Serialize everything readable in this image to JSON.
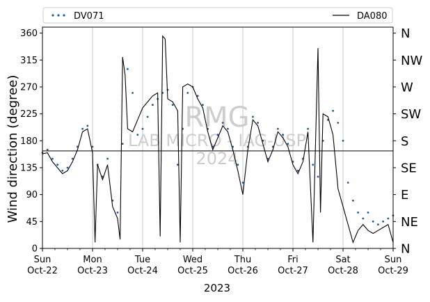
{
  "chart_data": {
    "type": "line",
    "title": "",
    "xlabel": "2023",
    "ylabel": "Wind direction (degree)",
    "ylim": [
      0,
      370
    ],
    "xlim": [
      0,
      7
    ],
    "grid": "vertical at day boundaries",
    "legend_placement": "top",
    "yticks": [
      0,
      45,
      90,
      135,
      180,
      225,
      270,
      315,
      360
    ],
    "right_axis_labels": [
      {
        "value": 0,
        "label": "N"
      },
      {
        "value": 45,
        "label": "NE"
      },
      {
        "value": 90,
        "label": "E"
      },
      {
        "value": 135,
        "label": "SE"
      },
      {
        "value": 180,
        "label": "S"
      },
      {
        "value": 225,
        "label": "SW"
      },
      {
        "value": 270,
        "label": "W"
      },
      {
        "value": 315,
        "label": "NW"
      },
      {
        "value": 360,
        "label": "N"
      }
    ],
    "xticks": [
      {
        "day": "Sun",
        "date": "Oct-22"
      },
      {
        "day": "Mon",
        "date": "Oct-23"
      },
      {
        "day": "Tue",
        "date": "Oct-24"
      },
      {
        "day": "Wed",
        "date": "Oct-25"
      },
      {
        "day": "Thu",
        "date": "Oct-26"
      },
      {
        "day": "Fri",
        "date": "Oct-27"
      },
      {
        "day": "Sat",
        "date": "Oct-28"
      },
      {
        "day": "Sun",
        "date": "Oct-29"
      }
    ],
    "hline": 163,
    "watermark": [
      "RMG",
      "LAB MICRO - IAG-USP",
      "2024"
    ],
    "series": [
      {
        "name": "DV071",
        "style": "dotted",
        "color": "#1f5a96",
        "x": [
          0.0,
          0.1,
          0.2,
          0.3,
          0.4,
          0.5,
          0.6,
          0.7,
          0.8,
          0.9,
          1.0,
          1.1,
          1.2,
          1.3,
          1.4,
          1.5,
          1.6,
          1.7,
          1.8,
          1.9,
          2.0,
          2.1,
          2.2,
          2.3,
          2.4,
          2.5,
          2.6,
          2.7,
          2.8,
          2.9,
          3.0,
          3.1,
          3.2,
          3.3,
          3.4,
          3.5,
          3.6,
          3.7,
          3.8,
          3.9,
          4.0,
          4.1,
          4.2,
          4.3,
          4.4,
          4.5,
          4.6,
          4.7,
          4.8,
          4.9,
          5.0,
          5.1,
          5.2,
          5.3,
          5.4,
          5.5,
          5.6,
          5.7,
          5.8,
          5.9,
          6.0,
          6.1,
          6.2,
          6.3,
          6.4,
          6.5,
          6.6,
          6.7,
          6.8,
          6.9,
          7.0
        ],
        "values": [
          160,
          165,
          150,
          140,
          130,
          135,
          150,
          170,
          200,
          205,
          170,
          140,
          120,
          150,
          80,
          60,
          175,
          300,
          260,
          190,
          200,
          220,
          240,
          250,
          260,
          265,
          240,
          140,
          200,
          260,
          270,
          255,
          240,
          200,
          170,
          190,
          210,
          200,
          170,
          140,
          110,
          170,
          220,
          210,
          180,
          150,
          170,
          200,
          190,
          175,
          145,
          130,
          150,
          200,
          140,
          120,
          180,
          215,
          230,
          210,
          180,
          110,
          80,
          60,
          50,
          60,
          45,
          40,
          45,
          50,
          55
        ]
      },
      {
        "name": "DA080",
        "style": "solid",
        "color": "#000000",
        "x": [
          0.0,
          0.1,
          0.2,
          0.3,
          0.4,
          0.5,
          0.6,
          0.7,
          0.8,
          0.9,
          1.0,
          1.05,
          1.1,
          1.2,
          1.3,
          1.4,
          1.5,
          1.55,
          1.6,
          1.65,
          1.7,
          1.8,
          1.9,
          2.0,
          2.1,
          2.2,
          2.3,
          2.35,
          2.4,
          2.45,
          2.5,
          2.6,
          2.7,
          2.75,
          2.8,
          2.9,
          3.0,
          3.1,
          3.2,
          3.3,
          3.4,
          3.5,
          3.6,
          3.7,
          3.8,
          3.9,
          4.0,
          4.1,
          4.2,
          4.3,
          4.4,
          4.5,
          4.6,
          4.7,
          4.8,
          4.9,
          5.0,
          5.1,
          5.2,
          5.3,
          5.4,
          5.5,
          5.55,
          5.6,
          5.7,
          5.8,
          5.9,
          6.0,
          6.1,
          6.2,
          6.3,
          6.4,
          6.5,
          6.6,
          6.7,
          6.8,
          6.9,
          7.0
        ],
        "values": [
          158,
          160,
          145,
          135,
          125,
          130,
          145,
          165,
          195,
          200,
          160,
          10,
          140,
          115,
          140,
          70,
          50,
          15,
          320,
          290,
          200,
          195,
          215,
          235,
          245,
          255,
          260,
          20,
          355,
          350,
          250,
          245,
          230,
          10,
          270,
          275,
          270,
          250,
          235,
          195,
          165,
          185,
          205,
          195,
          165,
          130,
          90,
          165,
          215,
          205,
          175,
          145,
          165,
          195,
          185,
          170,
          140,
          125,
          145,
          195,
          10,
          335,
          60,
          225,
          220,
          190,
          100,
          70,
          40,
          10,
          30,
          40,
          30,
          25,
          30,
          35,
          40,
          10
        ]
      }
    ]
  }
}
